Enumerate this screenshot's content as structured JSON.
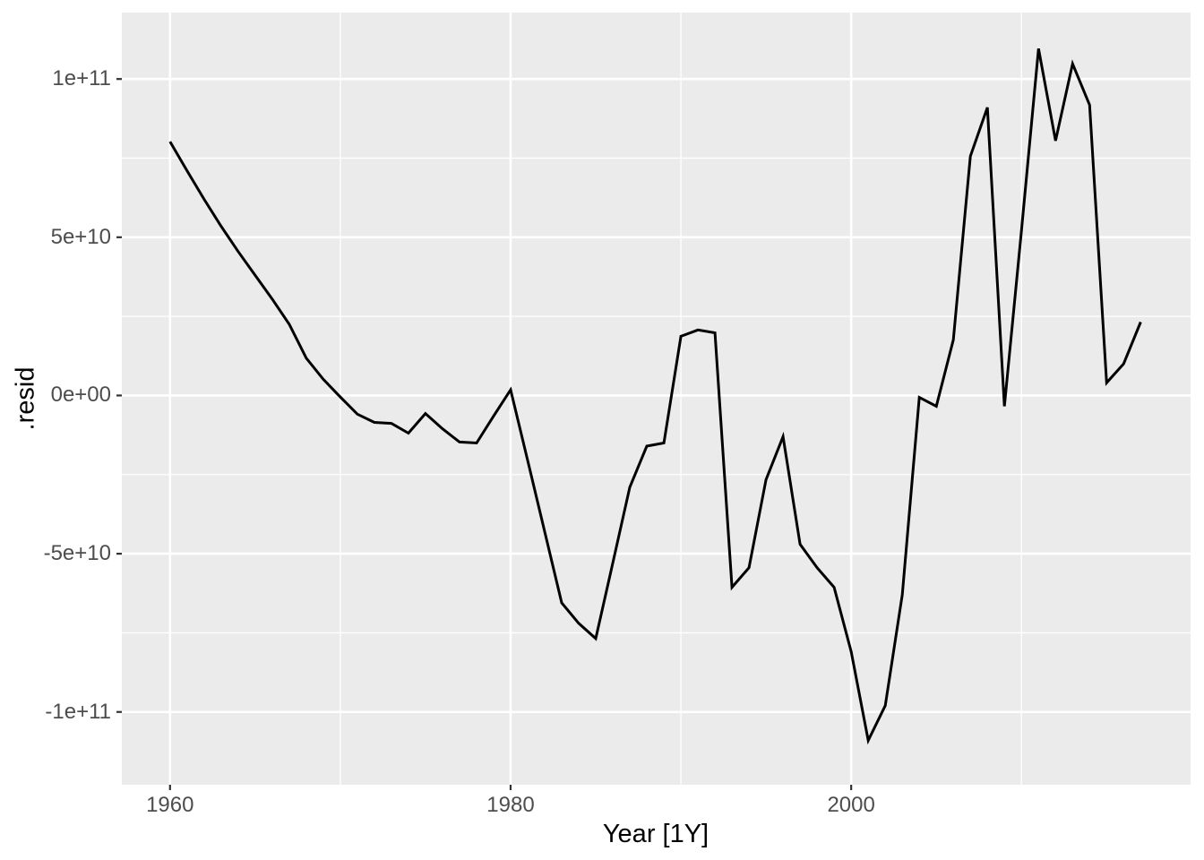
{
  "colors": {
    "panel_background": "#EBEBEB",
    "grid_major": "#FFFFFF",
    "grid_minor": "#FFFFFF",
    "line": "#000000",
    "tick_mark": "#333333",
    "tick_text": "#4d4d4d",
    "axis_title_text": "#000000",
    "figure_background": "#FFFFFF"
  },
  "chart_data": {
    "type": "line",
    "title": "",
    "xlabel": "Year [1Y]",
    "ylabel": ".resid",
    "grid": "on",
    "legend": "none",
    "xlim": [
      1957.17,
      2019.93
    ],
    "ylim": [
      -123000000000.0,
      121000000000.0
    ],
    "x_major_ticks": [
      1960,
      1980,
      2000
    ],
    "x_tick_labels": [
      "1960",
      "1980",
      "2000"
    ],
    "x_minor_ticks": [
      1970,
      1990,
      2010
    ],
    "y_major_ticks": [
      100000000000.0,
      50000000000.0,
      0,
      -50000000000.0,
      -100000000000.0
    ],
    "y_tick_labels": [
      "1e+11",
      "5e+10",
      "0e+00",
      "-5e+10",
      "-1e+11"
    ],
    "y_minor_ticks": [
      75000000000.0,
      25000000000.0,
      -25000000000.0,
      -75000000000.0
    ],
    "series": [
      {
        "name": ".resid",
        "x": [
          1960,
          1961,
          1962,
          1963,
          1964,
          1965,
          1966,
          1967,
          1968,
          1969,
          1970,
          1971,
          1972,
          1973,
          1974,
          1975,
          1976,
          1977,
          1978,
          1979,
          1980,
          1981,
          1982,
          1983,
          1984,
          1985,
          1986,
          1987,
          1988,
          1989,
          1990,
          1991,
          1992,
          1993,
          1994,
          1995,
          1996,
          1997,
          1998,
          1999,
          2000,
          2001,
          2002,
          2003,
          2004,
          2005,
          2006,
          2007,
          2008,
          2009,
          2010,
          2011,
          2012,
          2013,
          2014,
          2015,
          2016,
          2017
        ],
        "values": [
          80200000000.0,
          71000000000.0,
          62000000000.0,
          53500000000.0,
          45500000000.0,
          38000000000.0,
          30500000000.0,
          22500000000.0,
          11800000000.0,
          5100000000.0,
          -500000000.0,
          -5900000000.0,
          -8500000000.0,
          -8800000000.0,
          -11900000000.0,
          -5700000000.0,
          -10500000000.0,
          -14700000000.0,
          -15000000000.0,
          -6500000000.0,
          1800000000.0,
          -20500000000.0,
          -43000000000.0,
          -65500000000.0,
          -72000000000.0,
          -76800000000.0,
          -53000000000.0,
          -29000000000.0,
          -16000000000.0,
          -15000000000.0,
          18700000000.0,
          20700000000.0,
          19800000000.0,
          -60600000000.0,
          -54400000000.0,
          -26600000000.0,
          -13000000000.0,
          -47000000000.0,
          -54400000000.0,
          -60600000000.0,
          -81000000000.0,
          -109000000000.0,
          -98000000000.0,
          -63000000000.0,
          -600000000.0,
          -3400000000.0,
          17600000000.0,
          75600000000.0,
          91000000000.0,
          -3400000000.0,
          52000000000.0,
          109600000000.0,
          80500000000.0,
          104800000000.0,
          91800000000.0,
          4000000000.0,
          10000000000.0,
          23200000000.0
        ]
      }
    ]
  }
}
